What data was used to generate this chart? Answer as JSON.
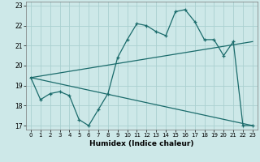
{
  "xlabel": "Humidex (Indice chaleur)",
  "xlim": [
    -0.5,
    23.5
  ],
  "ylim": [
    16.8,
    23.2
  ],
  "yticks": [
    17,
    18,
    19,
    20,
    21,
    22,
    23
  ],
  "xticks": [
    0,
    1,
    2,
    3,
    4,
    5,
    6,
    7,
    8,
    9,
    10,
    11,
    12,
    13,
    14,
    15,
    16,
    17,
    18,
    19,
    20,
    21,
    22,
    23
  ],
  "bg_color": "#cde8e8",
  "grid_color": "#aad0d0",
  "line_color": "#1a6b6b",
  "line1_x": [
    0,
    1,
    2,
    3,
    4,
    5,
    6,
    7,
    8,
    9,
    10,
    11,
    12,
    13,
    14,
    15,
    16,
    17,
    18,
    19,
    20,
    21,
    22,
    23
  ],
  "line1_y": [
    19.4,
    18.3,
    18.6,
    18.7,
    18.5,
    17.3,
    17.0,
    17.8,
    18.6,
    20.4,
    21.3,
    22.1,
    22.0,
    21.7,
    21.5,
    22.7,
    22.8,
    22.2,
    21.3,
    21.3,
    20.5,
    21.2,
    17.0,
    17.0
  ],
  "line2_x": [
    0,
    23
  ],
  "line2_y": [
    19.4,
    21.2
  ],
  "line3_x": [
    0,
    23
  ],
  "line3_y": [
    19.4,
    17.0
  ]
}
